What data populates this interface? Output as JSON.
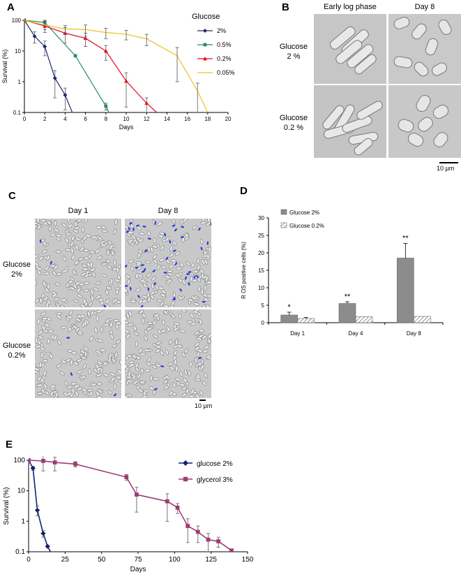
{
  "figure": {
    "panels": {
      "A": "A",
      "B": "B",
      "C": "C",
      "D": "D",
      "E": "E"
    },
    "B": {
      "col_labels": [
        "Early log phase",
        "Day 8"
      ],
      "row_labels": [
        [
          "Glucose",
          "2 %"
        ],
        [
          "Glucose",
          "0.2 %"
        ]
      ],
      "scale_bar": "10 µm"
    },
    "C": {
      "col_labels": [
        "Day 1",
        "Day 8"
      ],
      "row_labels": [
        [
          "Glucose",
          "2%"
        ],
        [
          "Glucose",
          "0.2%"
        ]
      ],
      "scale_bar": "10 µm"
    }
  },
  "chart_data": [
    {
      "id": "A",
      "type": "line",
      "title": "",
      "xlabel": "Days",
      "ylabel": "Survival (%)",
      "xlim": [
        0,
        20
      ],
      "ylim": [
        0.1,
        100
      ],
      "yscale": "log",
      "xticks": [
        "0",
        "2",
        "4",
        "6",
        "8",
        "10",
        "12",
        "14",
        "16",
        "18",
        "20"
      ],
      "yticks": [
        "100",
        "10",
        "1",
        "0.1"
      ],
      "legend_title": "Glucose",
      "legend_position": "right",
      "series": [
        {
          "name": "2%",
          "color": "#1f2a6b",
          "marker": "diamond",
          "x": [
            0,
            1,
            2,
            3,
            4,
            4.7
          ],
          "y": [
            100,
            30,
            14,
            1.3,
            0.37,
            0.1
          ],
          "err": [
            0,
            12,
            7,
            1.0,
            0.25,
            0
          ]
        },
        {
          "name": "0.5%",
          "color": "#2e8b6b",
          "marker": "square",
          "x": [
            0,
            2,
            5,
            8,
            8.3
          ],
          "y": [
            100,
            85,
            7,
            0.16,
            0.1
          ],
          "err": [
            0,
            15,
            0,
            0.04,
            0
          ]
        },
        {
          "name": "0.2%",
          "color": "#e01020",
          "marker": "triangle",
          "x": [
            0,
            2,
            4,
            6,
            8,
            10,
            12,
            13
          ],
          "y": [
            100,
            65,
            38,
            26,
            10,
            1.05,
            0.2,
            0.1
          ],
          "err": [
            0,
            25,
            20,
            12,
            5,
            0.9,
            0.1,
            0
          ]
        },
        {
          "name": "0.05%",
          "color": "#f0c020",
          "marker": "none",
          "x": [
            0,
            2,
            4,
            6,
            8,
            10,
            12,
            15,
            17,
            18
          ],
          "y": [
            100,
            70,
            52,
            50,
            40,
            35,
            25,
            7,
            0.5,
            0.1
          ],
          "err": [
            0,
            20,
            15,
            20,
            15,
            12,
            10,
            6,
            0.4,
            0
          ]
        }
      ]
    },
    {
      "id": "D",
      "type": "bar",
      "title": "",
      "xlabel": "",
      "ylabel": "R OS  positive  cells  (%)",
      "ylim": [
        0,
        30
      ],
      "yticks": [
        "0",
        "5",
        "10",
        "15",
        "20",
        "25",
        "30"
      ],
      "categories": [
        "Day 1",
        "Day 4",
        "Day 8"
      ],
      "legend_position": "top-left",
      "series": [
        {
          "name": "Glucose 2%",
          "fill": "#8c8c8c",
          "pattern": "solid",
          "values": [
            2.2,
            5.5,
            18.5
          ],
          "err": [
            0.8,
            0.5,
            4.2
          ]
        },
        {
          "name": "Glucose 0.2%",
          "fill": "#ffffff",
          "pattern": "hatched",
          "values": [
            1.2,
            1.7,
            1.8
          ],
          "err": [
            0.3,
            0,
            0
          ]
        }
      ],
      "annotations": [
        "*",
        "**",
        "**"
      ]
    },
    {
      "id": "E",
      "type": "line",
      "title": "",
      "xlabel": "Days",
      "ylabel": "Survival (%)",
      "xlim": [
        0,
        150
      ],
      "ylim": [
        0.1,
        100
      ],
      "yscale": "log",
      "xticks": [
        "0",
        "25",
        "50",
        "75",
        "100",
        "125",
        "150"
      ],
      "yticks": [
        "100",
        "10",
        "1",
        "0.1"
      ],
      "legend_position": "top-right",
      "series": [
        {
          "name": "glucose 2%",
          "color": "#13216b",
          "marker": "diamond",
          "x": [
            0,
            3,
            6,
            10,
            13,
            15,
            18
          ],
          "y": [
            100,
            55,
            2.3,
            0.4,
            0.15,
            0.1,
            0.07
          ],
          "err": [
            0,
            8,
            0.8,
            0.1,
            0,
            0,
            0
          ]
        },
        {
          "name": "glycerol 3%",
          "color": "#a03b73",
          "marker": "square",
          "x": [
            0,
            10,
            18,
            32,
            67,
            74,
            95,
            102,
            109,
            116,
            123,
            130,
            139
          ],
          "y": [
            100,
            95,
            85,
            75,
            28,
            7.5,
            4.5,
            2.8,
            0.7,
            0.45,
            0.25,
            0.22,
            0.11
          ],
          "err": [
            0,
            50,
            40,
            15,
            6,
            5.5,
            3.5,
            1,
            0.5,
            0.25,
            0.15,
            0.08,
            0
          ]
        }
      ]
    }
  ]
}
